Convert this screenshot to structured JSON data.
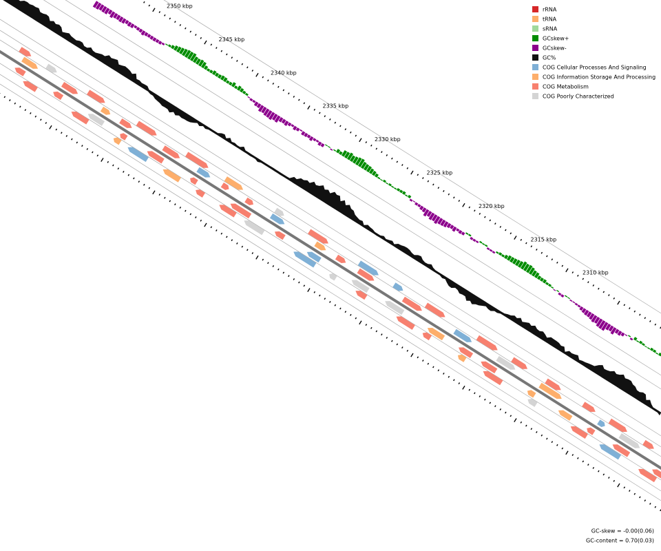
{
  "legend": [
    {
      "label": "rRNA",
      "color": "#d62728"
    },
    {
      "label": "tRNA",
      "color": "#fdae6b"
    },
    {
      "label": "sRNA",
      "color": "#a1d99b"
    },
    {
      "label": "GCskew+",
      "color": "#008c00"
    },
    {
      "label": "GCskew-",
      "color": "#8c008c"
    },
    {
      "label": "GC%",
      "color": "#111111"
    },
    {
      "label": "COG Cellular Processes And Signaling",
      "color": "#7fb0d6"
    },
    {
      "label": "COG Information Storage And Processing",
      "color": "#fdae6b"
    },
    {
      "label": "COG Metabolism",
      "color": "#f7806f"
    },
    {
      "label": "COG Poorly Characterized",
      "color": "#d4d4d4"
    }
  ],
  "ticks": [
    "2350 kbp",
    "2345 kbp",
    "2340 kbp",
    "2335 kbp",
    "2330 kbp",
    "2325 kbp",
    "2320 kbp",
    "2315 kbp",
    "2310 kbp"
  ],
  "footer": [
    "GC-skew = -0.00(0.06)",
    "GC-content = 0.70(0.03)"
  ]
}
